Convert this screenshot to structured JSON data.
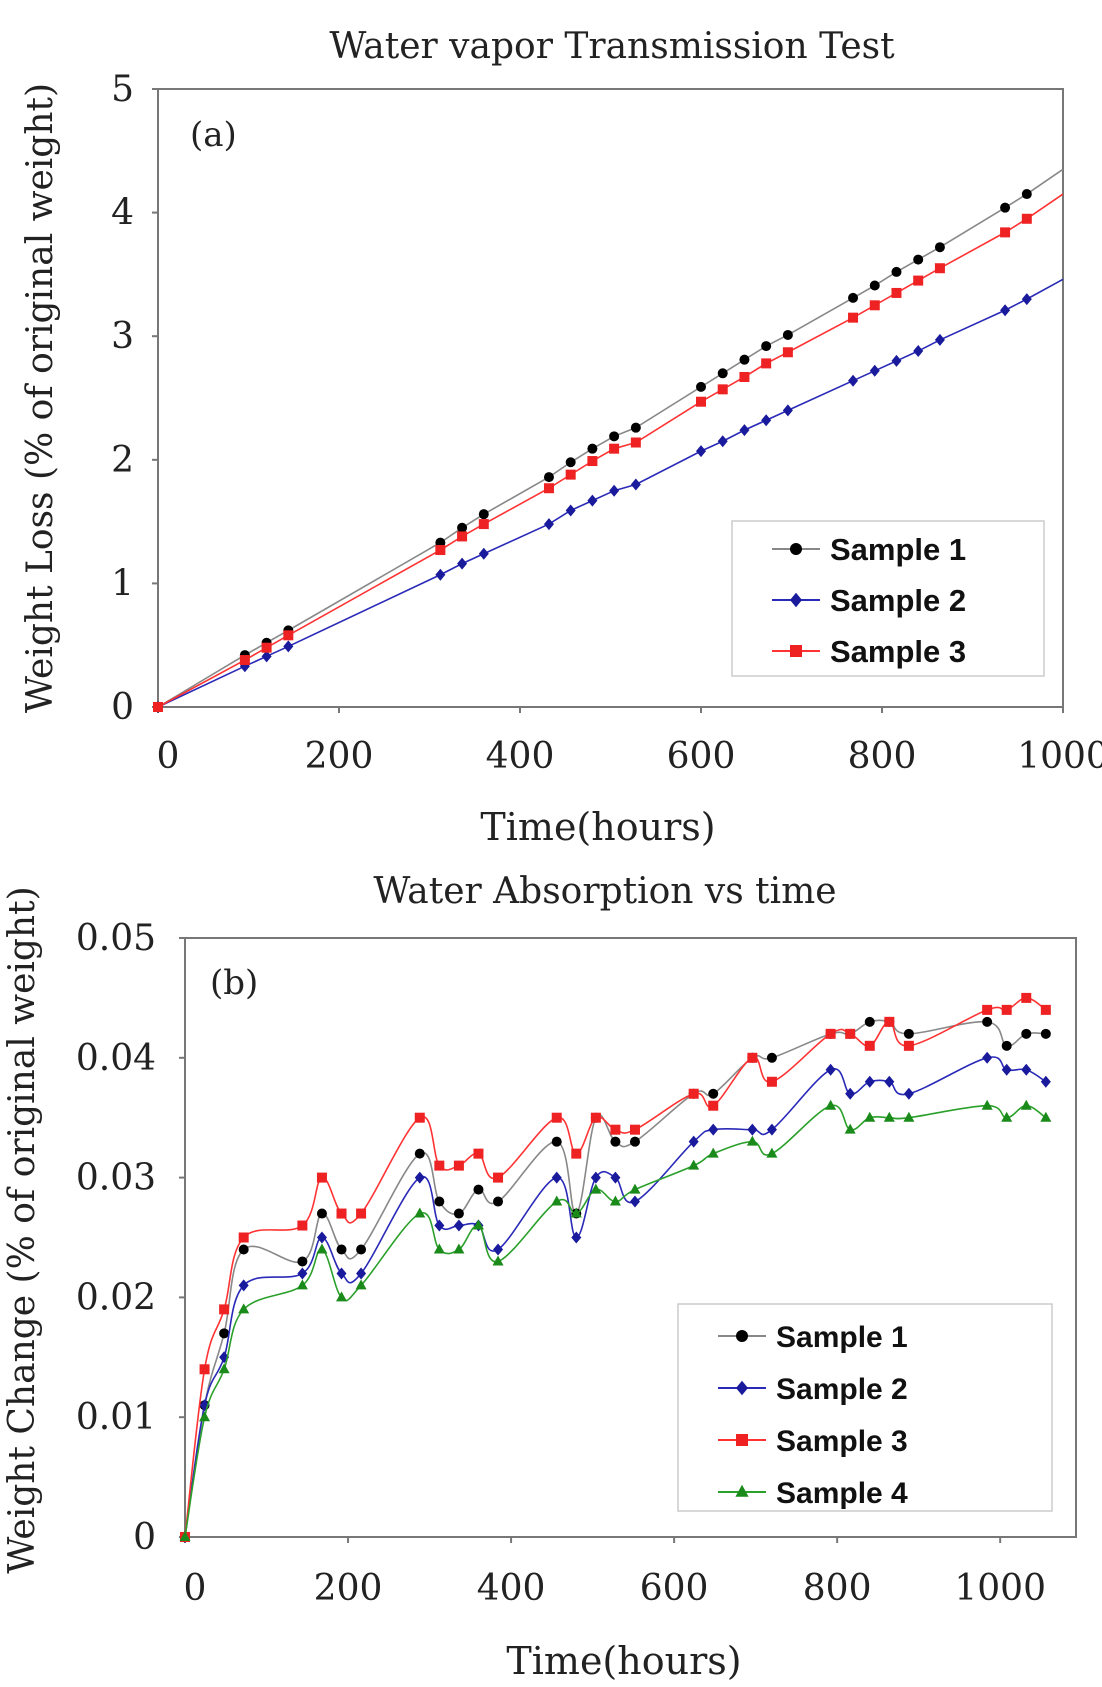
{
  "chart_data": [
    {
      "type": "line",
      "title": "Water vapor Transmission Test",
      "panel_label": "(a)",
      "xlabel": "Time(hours)",
      "ylabel": "Weight Loss (% of original weight)",
      "xlim": [
        0,
        1000
      ],
      "ylim": [
        0,
        5
      ],
      "xticks": [
        "0",
        "200",
        "400",
        "600",
        "800",
        "1000"
      ],
      "yticks": [
        "0",
        "1",
        "2",
        "3",
        "4",
        "5"
      ],
      "grid": false,
      "legend_position": "bottom-right",
      "x": [
        0,
        96,
        120,
        144,
        312,
        336,
        360,
        432,
        456,
        480,
        504,
        528,
        600,
        624,
        648,
        672,
        696,
        768,
        792,
        816,
        840,
        864,
        936,
        960,
        1000
      ],
      "series": [
        {
          "name": "Sample 1",
          "color": "#000000",
          "line_color": "#888888",
          "marker": "circle",
          "values": [
            0,
            0.42,
            0.52,
            0.62,
            1.33,
            1.45,
            1.56,
            1.86,
            1.98,
            2.09,
            2.19,
            2.26,
            2.59,
            2.7,
            2.81,
            2.92,
            3.01,
            3.31,
            3.41,
            3.52,
            3.62,
            3.72,
            4.04,
            4.15,
            4.35
          ]
        },
        {
          "name": "Sample 2",
          "color": "#1a1a9c",
          "line_color": "#2a2ab8",
          "marker": "diamond",
          "values": [
            0,
            0.33,
            0.41,
            0.49,
            1.07,
            1.16,
            1.24,
            1.48,
            1.59,
            1.67,
            1.75,
            1.8,
            2.07,
            2.15,
            2.24,
            2.32,
            2.4,
            2.64,
            2.72,
            2.8,
            2.88,
            2.97,
            3.21,
            3.3,
            3.46
          ]
        },
        {
          "name": "Sample 3",
          "color": "#ee2222",
          "line_color": "#ff3333",
          "marker": "square",
          "values": [
            0,
            0.38,
            0.48,
            0.58,
            1.27,
            1.38,
            1.48,
            1.77,
            1.88,
            1.99,
            2.09,
            2.14,
            2.47,
            2.57,
            2.67,
            2.78,
            2.87,
            3.15,
            3.25,
            3.35,
            3.45,
            3.55,
            3.84,
            3.95,
            4.15
          ]
        }
      ]
    },
    {
      "type": "line",
      "title": "Water Absorption vs time",
      "panel_label": "(b)",
      "xlabel": "Time(hours)",
      "ylabel": "Weight Change (% of original weight)",
      "xlim": [
        0,
        1093
      ],
      "ylim": [
        0,
        0.05
      ],
      "xticks": [
        "0",
        "200",
        "400",
        "600",
        "800",
        "1000"
      ],
      "yticks": [
        "0",
        "0.01",
        "0.02",
        "0.03",
        "0.04",
        "0.05"
      ],
      "grid": false,
      "legend_position": "bottom-right",
      "x": [
        0,
        24,
        48,
        72,
        144,
        168,
        192,
        216,
        288,
        312,
        336,
        360,
        384,
        456,
        480,
        504,
        528,
        552,
        624,
        648,
        696,
        720,
        792,
        816,
        840,
        864,
        888,
        984,
        1008,
        1032,
        1056
      ],
      "series": [
        {
          "name": "Sample 1",
          "color": "#000000",
          "line_color": "#888888",
          "marker": "circle",
          "values": [
            0,
            0.011,
            0.017,
            0.024,
            0.023,
            0.027,
            0.024,
            0.024,
            0.032,
            0.028,
            0.027,
            0.029,
            0.028,
            0.033,
            0.027,
            0.035,
            0.033,
            0.033,
            0.037,
            0.037,
            0.04,
            0.04,
            0.042,
            0.042,
            0.043,
            0.043,
            0.042,
            0.043,
            0.041,
            0.042,
            0.042
          ]
        },
        {
          "name": "Sample 2",
          "color": "#1a1a9c",
          "line_color": "#2a2ab8",
          "marker": "diamond",
          "values": [
            0,
            0.011,
            0.015,
            0.021,
            0.022,
            0.025,
            0.022,
            0.022,
            0.03,
            0.026,
            0.026,
            0.026,
            0.024,
            0.03,
            0.025,
            0.03,
            0.03,
            0.028,
            0.033,
            0.034,
            0.034,
            0.034,
            0.039,
            0.037,
            0.038,
            0.038,
            0.037,
            0.04,
            0.039,
            0.039,
            0.038
          ]
        },
        {
          "name": "Sample 3",
          "color": "#ee2222",
          "line_color": "#ff3333",
          "marker": "square",
          "values": [
            0,
            0.014,
            0.019,
            0.025,
            0.026,
            0.03,
            0.027,
            0.027,
            0.035,
            0.031,
            0.031,
            0.032,
            0.03,
            0.035,
            0.032,
            0.035,
            0.034,
            0.034,
            0.037,
            0.036,
            0.04,
            0.038,
            0.042,
            0.042,
            0.041,
            0.043,
            0.041,
            0.044,
            0.044,
            0.045,
            0.044
          ]
        },
        {
          "name": "Sample 4",
          "color": "#1a8a1a",
          "line_color": "#2aa02a",
          "marker": "triangle",
          "values": [
            0,
            0.01,
            0.014,
            0.019,
            0.021,
            0.024,
            0.02,
            0.021,
            0.027,
            0.024,
            0.024,
            0.026,
            0.023,
            0.028,
            0.027,
            0.029,
            0.028,
            0.029,
            0.031,
            0.032,
            0.033,
            0.032,
            0.036,
            0.034,
            0.035,
            0.035,
            0.035,
            0.036,
            0.035,
            0.036,
            0.035
          ]
        }
      ]
    }
  ]
}
